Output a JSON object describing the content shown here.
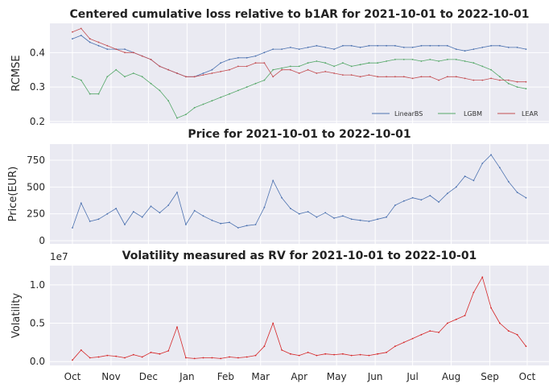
{
  "chart_data": [
    {
      "type": "line",
      "title": "Centered cumulative loss relative to b1AR for 2021-10-01 to 2022-10-01",
      "xlabel": "",
      "ylabel": "RCMSE",
      "ylim": [
        0.195,
        0.485
      ],
      "yticks": [
        "0.2",
        "0.3",
        "0.4"
      ],
      "ytick_values": [
        0.2,
        0.3,
        0.4
      ],
      "grid": true,
      "legend": "bottom-right",
      "x_start": "2021-10-01",
      "x": [
        "2021-10-01",
        "2021-10-08",
        "2021-10-15",
        "2021-10-22",
        "2021-10-29",
        "2021-11-05",
        "2021-11-12",
        "2021-11-19",
        "2021-11-26",
        "2021-12-03",
        "2021-12-10",
        "2021-12-17",
        "2021-12-24",
        "2021-12-31",
        "2022-01-07",
        "2022-01-14",
        "2022-01-21",
        "2022-01-28",
        "2022-02-04",
        "2022-02-11",
        "2022-02-18",
        "2022-02-25",
        "2022-03-04",
        "2022-03-11",
        "2022-03-18",
        "2022-03-25",
        "2022-04-01",
        "2022-04-08",
        "2022-04-15",
        "2022-04-22",
        "2022-04-29",
        "2022-05-06",
        "2022-05-13",
        "2022-05-20",
        "2022-05-27",
        "2022-06-03",
        "2022-06-10",
        "2022-06-17",
        "2022-06-24",
        "2022-07-01",
        "2022-07-08",
        "2022-07-15",
        "2022-07-22",
        "2022-07-29",
        "2022-08-05",
        "2022-08-12",
        "2022-08-19",
        "2022-08-26",
        "2022-09-02",
        "2022-09-09",
        "2022-09-16",
        "2022-09-23",
        "2022-09-30"
      ],
      "series": [
        {
          "name": "LinearBS",
          "color": "#4c72b0",
          "values": [
            0.44,
            0.45,
            0.43,
            0.42,
            0.41,
            0.41,
            0.41,
            0.4,
            0.39,
            0.38,
            0.36,
            0.35,
            0.34,
            0.33,
            0.33,
            0.34,
            0.35,
            0.37,
            0.38,
            0.385,
            0.385,
            0.39,
            0.4,
            0.41,
            0.41,
            0.415,
            0.41,
            0.415,
            0.42,
            0.415,
            0.41,
            0.42,
            0.42,
            0.415,
            0.42,
            0.42,
            0.42,
            0.42,
            0.415,
            0.415,
            0.42,
            0.42,
            0.42,
            0.42,
            0.41,
            0.405,
            0.41,
            0.415,
            0.42,
            0.42,
            0.415,
            0.415,
            0.41
          ]
        },
        {
          "name": "LGBM",
          "color": "#55a868",
          "values": [
            0.33,
            0.32,
            0.28,
            0.28,
            0.33,
            0.35,
            0.33,
            0.34,
            0.33,
            0.31,
            0.29,
            0.26,
            0.21,
            0.22,
            0.24,
            0.25,
            0.26,
            0.27,
            0.28,
            0.29,
            0.3,
            0.31,
            0.32,
            0.35,
            0.355,
            0.36,
            0.36,
            0.37,
            0.375,
            0.37,
            0.36,
            0.37,
            0.36,
            0.365,
            0.37,
            0.37,
            0.375,
            0.38,
            0.38,
            0.38,
            0.375,
            0.38,
            0.375,
            0.38,
            0.38,
            0.375,
            0.37,
            0.36,
            0.35,
            0.33,
            0.31,
            0.3,
            0.295
          ]
        },
        {
          "name": "LEAR",
          "color": "#c44e52",
          "values": [
            0.46,
            0.47,
            0.44,
            0.43,
            0.42,
            0.41,
            0.4,
            0.4,
            0.39,
            0.38,
            0.36,
            0.35,
            0.34,
            0.33,
            0.33,
            0.335,
            0.34,
            0.345,
            0.35,
            0.36,
            0.36,
            0.37,
            0.37,
            0.33,
            0.35,
            0.35,
            0.34,
            0.35,
            0.34,
            0.345,
            0.34,
            0.335,
            0.335,
            0.33,
            0.335,
            0.33,
            0.33,
            0.33,
            0.33,
            0.325,
            0.33,
            0.33,
            0.32,
            0.33,
            0.33,
            0.325,
            0.32,
            0.32,
            0.325,
            0.32,
            0.32,
            0.315,
            0.315
          ]
        }
      ]
    },
    {
      "type": "line",
      "title": "Price for 2021-10-01 to 2022-10-01",
      "xlabel": "",
      "ylabel": "Price(EUR)",
      "ylim": [
        -30,
        900
      ],
      "yticks": [
        "0",
        "250",
        "500",
        "750"
      ],
      "ytick_values": [
        0,
        250,
        500,
        750
      ],
      "grid": true,
      "x": [
        "2021-10-01",
        "2021-10-08",
        "2021-10-15",
        "2021-10-22",
        "2021-10-29",
        "2021-11-05",
        "2021-11-12",
        "2021-11-19",
        "2021-11-26",
        "2021-12-03",
        "2021-12-10",
        "2021-12-17",
        "2021-12-24",
        "2021-12-31",
        "2022-01-07",
        "2022-01-14",
        "2022-01-21",
        "2022-01-28",
        "2022-02-04",
        "2022-02-11",
        "2022-02-18",
        "2022-02-25",
        "2022-03-04",
        "2022-03-11",
        "2022-03-18",
        "2022-03-25",
        "2022-04-01",
        "2022-04-08",
        "2022-04-15",
        "2022-04-22",
        "2022-04-29",
        "2022-05-06",
        "2022-05-13",
        "2022-05-20",
        "2022-05-27",
        "2022-06-03",
        "2022-06-10",
        "2022-06-17",
        "2022-06-24",
        "2022-07-01",
        "2022-07-08",
        "2022-07-15",
        "2022-07-22",
        "2022-07-29",
        "2022-08-05",
        "2022-08-12",
        "2022-08-19",
        "2022-08-26",
        "2022-09-02",
        "2022-09-09",
        "2022-09-16",
        "2022-09-23",
        "2022-09-30"
      ],
      "series": [
        {
          "name": "",
          "color": "#4c72b0",
          "values": [
            120,
            350,
            180,
            200,
            250,
            300,
            150,
            270,
            220,
            320,
            260,
            330,
            450,
            150,
            280,
            230,
            190,
            160,
            170,
            120,
            140,
            150,
            310,
            560,
            400,
            300,
            250,
            270,
            220,
            260,
            210,
            230,
            200,
            190,
            180,
            200,
            220,
            330,
            370,
            400,
            380,
            420,
            360,
            440,
            500,
            600,
            560,
            720,
            800,
            680,
            550,
            450,
            400
          ]
        }
      ]
    },
    {
      "type": "line",
      "title": "Volatility measured as RV for 2021-10-01 to 2022-10-01",
      "xlabel": "",
      "ylabel": "Volatility",
      "scale_label": "1e7",
      "ylim": [
        -0.05,
        1.25
      ],
      "yticks": [
        "0.0",
        "0.5",
        "1.0"
      ],
      "ytick_values": [
        0.0,
        0.5,
        1.0
      ],
      "grid": true,
      "xticks": [
        "Oct",
        "Nov",
        "Dec",
        "Jan",
        "Feb",
        "Mar",
        "Apr",
        "May",
        "Jun",
        "Jul",
        "Aug",
        "Sep",
        "Oct"
      ],
      "xtick_dates": [
        "2021-10-01",
        "2021-11-01",
        "2021-12-01",
        "2022-01-01",
        "2022-02-01",
        "2022-03-01",
        "2022-04-01",
        "2022-05-01",
        "2022-06-01",
        "2022-07-01",
        "2022-08-01",
        "2022-09-01",
        "2022-10-01"
      ],
      "x": [
        "2021-10-01",
        "2021-10-08",
        "2021-10-15",
        "2021-10-22",
        "2021-10-29",
        "2021-11-05",
        "2021-11-12",
        "2021-11-19",
        "2021-11-26",
        "2021-12-03",
        "2021-12-10",
        "2021-12-17",
        "2021-12-24",
        "2021-12-31",
        "2022-01-07",
        "2022-01-14",
        "2022-01-21",
        "2022-01-28",
        "2022-02-04",
        "2022-02-11",
        "2022-02-18",
        "2022-02-25",
        "2022-03-04",
        "2022-03-11",
        "2022-03-18",
        "2022-03-25",
        "2022-04-01",
        "2022-04-08",
        "2022-04-15",
        "2022-04-22",
        "2022-04-29",
        "2022-05-06",
        "2022-05-13",
        "2022-05-20",
        "2022-05-27",
        "2022-06-03",
        "2022-06-10",
        "2022-06-17",
        "2022-06-24",
        "2022-07-01",
        "2022-07-08",
        "2022-07-15",
        "2022-07-22",
        "2022-07-29",
        "2022-08-05",
        "2022-08-12",
        "2022-08-19",
        "2022-08-26",
        "2022-09-02",
        "2022-09-09",
        "2022-09-16",
        "2022-09-23",
        "2022-09-30"
      ],
      "series": [
        {
          "name": "",
          "color": "#d62728",
          "values": [
            0.02,
            0.15,
            0.05,
            0.06,
            0.08,
            0.07,
            0.05,
            0.09,
            0.06,
            0.12,
            0.1,
            0.14,
            0.45,
            0.05,
            0.04,
            0.05,
            0.05,
            0.04,
            0.06,
            0.05,
            0.06,
            0.08,
            0.2,
            0.5,
            0.15,
            0.1,
            0.08,
            0.12,
            0.08,
            0.1,
            0.09,
            0.1,
            0.08,
            0.09,
            0.08,
            0.1,
            0.12,
            0.2,
            0.25,
            0.3,
            0.35,
            0.4,
            0.38,
            0.5,
            0.55,
            0.6,
            0.9,
            1.1,
            0.7,
            0.5,
            0.4,
            0.35,
            0.2
          ]
        }
      ]
    }
  ]
}
